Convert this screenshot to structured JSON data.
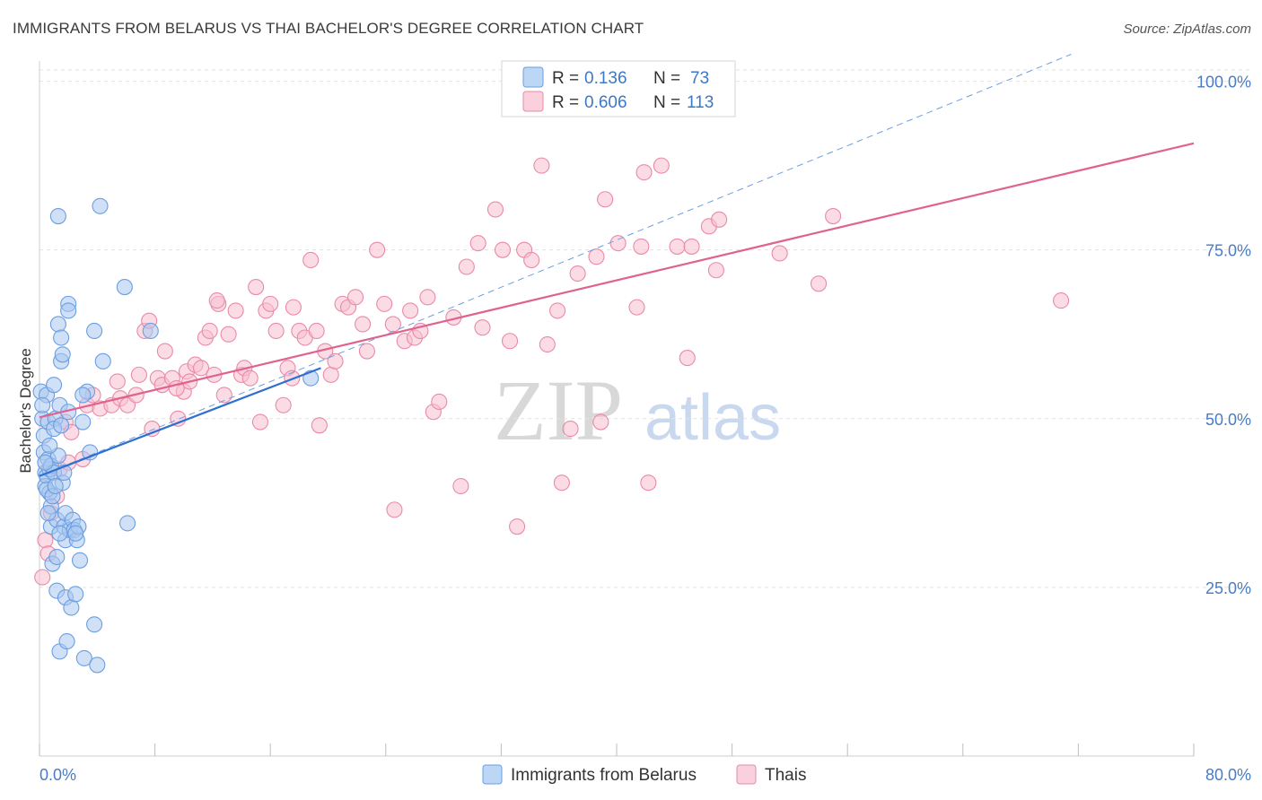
{
  "title": "IMMIGRANTS FROM BELARUS VS THAI BACHELOR'S DEGREE CORRELATION CHART",
  "source": "Source: ZipAtlas.com",
  "watermark": {
    "zip": "ZIP",
    "atlas": "atlas"
  },
  "legend_box": {
    "row1": {
      "r_label": "R =",
      "r_value": "0.136",
      "n_label": "N =",
      "n_value": "73"
    },
    "row2": {
      "r_label": "R =",
      "r_value": "0.606",
      "n_label": "N =",
      "n_value": "113"
    }
  },
  "colors": {
    "blue_fill": "#a9c8f0",
    "blue_stroke": "#6b9ee0",
    "blue_line": "#2e6fcf",
    "pink_fill": "#f7bfd0",
    "pink_stroke": "#e98aa8",
    "pink_line": "#e0628f",
    "grid": "#e3e3e3",
    "axis_text": "#4a7bc4"
  },
  "chart_data": {
    "type": "scatter",
    "title": "IMMIGRANTS FROM BELARUS VS THAI BACHELOR'S DEGREE CORRELATION CHART",
    "xlabel": "",
    "ylabel": "Bachelor's Degree",
    "xlim": [
      0,
      80
    ],
    "ylim": [
      0,
      103
    ],
    "x_tick_labels": {
      "left": "0.0%",
      "right": "80.0%"
    },
    "y_ticks": [
      {
        "value": 25,
        "label": "25.0%"
      },
      {
        "value": 50,
        "label": "50.0%"
      },
      {
        "value": 75,
        "label": "75.0%"
      },
      {
        "value": 100,
        "label": "100.0%"
      }
    ],
    "legend": [
      "Immigrants from Belarus",
      "Thais"
    ],
    "series": [
      {
        "name": "Immigrants from Belarus",
        "r": 0.136,
        "n": 73,
        "trend": {
          "x0": 0.0,
          "y0": 41.5,
          "x1": 19.5,
          "y1": 57.5
        },
        "dashed_trend": {
          "x0": 0.0,
          "y0": 41.5,
          "x1": 71.5,
          "y1": 104.0
        },
        "points": [
          [
            0.1,
            54.0
          ],
          [
            0.2,
            50.0
          ],
          [
            0.3,
            47.5
          ],
          [
            0.3,
            45.0
          ],
          [
            0.4,
            42.0
          ],
          [
            0.4,
            40.0
          ],
          [
            0.5,
            53.5
          ],
          [
            0.5,
            41.5
          ],
          [
            0.6,
            49.5
          ],
          [
            0.6,
            44.0
          ],
          [
            0.7,
            42.5
          ],
          [
            0.7,
            39.0
          ],
          [
            0.8,
            43.0
          ],
          [
            0.8,
            37.0
          ],
          [
            0.8,
            34.0
          ],
          [
            0.9,
            28.5
          ],
          [
            1.0,
            55.0
          ],
          [
            1.0,
            42.0
          ],
          [
            1.1,
            50.0
          ],
          [
            1.2,
            35.0
          ],
          [
            1.2,
            29.5
          ],
          [
            1.2,
            24.5
          ],
          [
            1.3,
            80.0
          ],
          [
            1.3,
            64.0
          ],
          [
            1.3,
            44.5
          ],
          [
            1.4,
            15.5
          ],
          [
            1.4,
            52.0
          ],
          [
            1.5,
            58.5
          ],
          [
            1.5,
            62.0
          ],
          [
            1.6,
            59.5
          ],
          [
            1.6,
            40.5
          ],
          [
            1.7,
            42.0
          ],
          [
            1.7,
            34.0
          ],
          [
            1.8,
            36.0
          ],
          [
            1.8,
            32.0
          ],
          [
            1.8,
            23.5
          ],
          [
            1.9,
            17.0
          ],
          [
            2.0,
            67.0
          ],
          [
            2.0,
            66.0
          ],
          [
            2.1,
            33.5
          ],
          [
            2.2,
            22.0
          ],
          [
            2.3,
            35.0
          ],
          [
            2.4,
            33.5
          ],
          [
            2.5,
            24.0
          ],
          [
            2.6,
            32.0
          ],
          [
            2.7,
            34.0
          ],
          [
            2.8,
            29.0
          ],
          [
            3.0,
            49.5
          ],
          [
            3.1,
            14.5
          ],
          [
            3.3,
            54.0
          ],
          [
            3.5,
            45.0
          ],
          [
            3.8,
            63.0
          ],
          [
            3.8,
            19.5
          ],
          [
            4.0,
            13.5
          ],
          [
            4.2,
            81.5
          ],
          [
            4.4,
            58.5
          ],
          [
            5.9,
            69.5
          ],
          [
            6.1,
            34.5
          ],
          [
            7.7,
            63.0
          ],
          [
            18.8,
            56.0
          ],
          [
            0.5,
            39.5
          ],
          [
            0.9,
            38.5
          ],
          [
            1.1,
            40.0
          ],
          [
            0.6,
            36.0
          ],
          [
            1.4,
            33.0
          ],
          [
            2.5,
            33.0
          ],
          [
            0.7,
            46.0
          ],
          [
            1.0,
            48.5
          ],
          [
            0.2,
            52.0
          ],
          [
            1.5,
            49.0
          ],
          [
            0.4,
            43.5
          ],
          [
            2.0,
            51.0
          ],
          [
            3.0,
            53.5
          ]
        ]
      },
      {
        "name": "Thais",
        "r": 0.606,
        "n": 113,
        "trend": {
          "x0": 0.0,
          "y0": 50.2,
          "x1": 80.0,
          "y1": 90.8
        },
        "points": [
          [
            0.2,
            26.5
          ],
          [
            0.4,
            32.0
          ],
          [
            0.8,
            36.0
          ],
          [
            1.2,
            38.5
          ],
          [
            1.4,
            42.5
          ],
          [
            1.8,
            49.5
          ],
          [
            2.0,
            43.5
          ],
          [
            2.2,
            48.0
          ],
          [
            3.0,
            44.0
          ],
          [
            3.3,
            52.0
          ],
          [
            3.7,
            53.5
          ],
          [
            4.2,
            51.5
          ],
          [
            5.0,
            52.0
          ],
          [
            5.4,
            55.5
          ],
          [
            5.6,
            53.0
          ],
          [
            6.1,
            52.0
          ],
          [
            6.7,
            53.5
          ],
          [
            6.9,
            56.5
          ],
          [
            7.3,
            63.0
          ],
          [
            7.6,
            64.5
          ],
          [
            7.8,
            48.5
          ],
          [
            8.2,
            56.0
          ],
          [
            8.5,
            55.0
          ],
          [
            8.7,
            60.0
          ],
          [
            9.2,
            56.0
          ],
          [
            9.6,
            50.0
          ],
          [
            10.0,
            54.0
          ],
          [
            10.2,
            57.0
          ],
          [
            10.4,
            55.5
          ],
          [
            10.8,
            58.0
          ],
          [
            11.2,
            57.5
          ],
          [
            11.5,
            62.0
          ],
          [
            11.8,
            63.0
          ],
          [
            12.1,
            56.5
          ],
          [
            12.4,
            67.0
          ],
          [
            12.8,
            53.5
          ],
          [
            13.1,
            62.5
          ],
          [
            13.6,
            66.0
          ],
          [
            14.0,
            56.5
          ],
          [
            14.2,
            57.5
          ],
          [
            14.6,
            56.0
          ],
          [
            15.0,
            69.5
          ],
          [
            15.3,
            49.5
          ],
          [
            15.7,
            66.0
          ],
          [
            16.0,
            67.0
          ],
          [
            16.4,
            63.0
          ],
          [
            16.9,
            52.0
          ],
          [
            17.2,
            57.5
          ],
          [
            17.6,
            66.5
          ],
          [
            18.0,
            63.0
          ],
          [
            18.4,
            62.0
          ],
          [
            18.8,
            73.5
          ],
          [
            19.2,
            63.0
          ],
          [
            19.4,
            49.0
          ],
          [
            19.8,
            60.0
          ],
          [
            20.2,
            56.5
          ],
          [
            20.5,
            58.5
          ],
          [
            21.0,
            67.0
          ],
          [
            21.4,
            66.5
          ],
          [
            21.9,
            68.0
          ],
          [
            22.4,
            64.0
          ],
          [
            22.7,
            60.0
          ],
          [
            23.4,
            75.0
          ],
          [
            23.9,
            67.0
          ],
          [
            24.5,
            64.0
          ],
          [
            24.6,
            36.5
          ],
          [
            25.3,
            61.5
          ],
          [
            25.7,
            66.0
          ],
          [
            26.0,
            62.0
          ],
          [
            26.4,
            63.0
          ],
          [
            26.9,
            68.0
          ],
          [
            27.3,
            51.0
          ],
          [
            27.7,
            52.5
          ],
          [
            28.7,
            65.0
          ],
          [
            29.6,
            72.5
          ],
          [
            30.4,
            76.0
          ],
          [
            30.7,
            63.5
          ],
          [
            31.6,
            81.0
          ],
          [
            32.1,
            75.0
          ],
          [
            32.6,
            61.5
          ],
          [
            33.1,
            34.0
          ],
          [
            33.6,
            75.0
          ],
          [
            34.1,
            73.5
          ],
          [
            34.8,
            87.5
          ],
          [
            35.2,
            61.0
          ],
          [
            35.9,
            66.0
          ],
          [
            36.2,
            40.5
          ],
          [
            36.8,
            48.5
          ],
          [
            37.3,
            71.5
          ],
          [
            38.6,
            74.0
          ],
          [
            38.9,
            49.5
          ],
          [
            39.2,
            82.5
          ],
          [
            40.1,
            76.0
          ],
          [
            41.4,
            66.5
          ],
          [
            41.7,
            75.5
          ],
          [
            41.9,
            86.5
          ],
          [
            42.2,
            40.5
          ],
          [
            43.1,
            87.5
          ],
          [
            44.2,
            75.5
          ],
          [
            44.9,
            59.0
          ],
          [
            45.2,
            75.5
          ],
          [
            46.4,
            78.5
          ],
          [
            46.9,
            72.0
          ],
          [
            47.1,
            79.5
          ],
          [
            51.3,
            74.5
          ],
          [
            54.0,
            70.0
          ],
          [
            55.0,
            80.0
          ],
          [
            70.8,
            67.5
          ],
          [
            12.3,
            67.5
          ],
          [
            17.5,
            56.0
          ],
          [
            29.2,
            40.0
          ],
          [
            0.6,
            30.0
          ],
          [
            9.5,
            54.5
          ]
        ]
      }
    ]
  }
}
